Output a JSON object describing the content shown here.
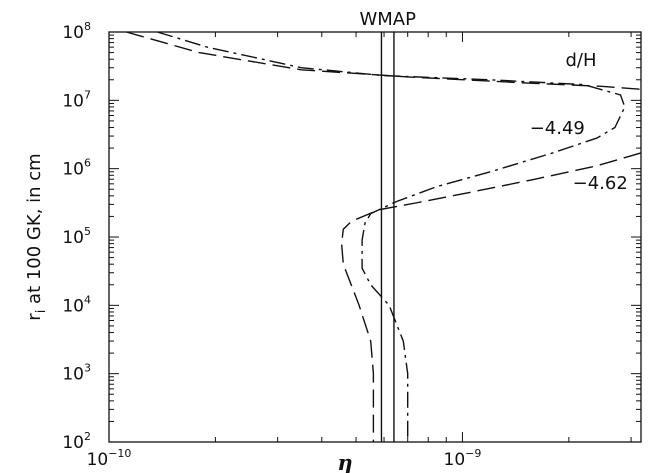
{
  "chart_data": {
    "type": "line",
    "title": "",
    "xlabel": "η",
    "ylabel": "r_i at 100 GK, in cm",
    "xscale": "log",
    "yscale": "log",
    "xlim": [
      1e-10,
      3.2e-09
    ],
    "ylim": [
      100,
      100000000
    ],
    "grid": false,
    "x_tick_labels": [
      {
        "value": 1e-10,
        "base": "10",
        "exp": "−10"
      },
      {
        "value": 1e-09,
        "base": "10",
        "exp": "−9"
      }
    ],
    "y_tick_labels": [
      {
        "value": 100,
        "base": "10",
        "exp": "2"
      },
      {
        "value": 1000,
        "base": "10",
        "exp": "3"
      },
      {
        "value": 10000,
        "base": "10",
        "exp": "4"
      },
      {
        "value": 100000,
        "base": "10",
        "exp": "5"
      },
      {
        "value": 1000000,
        "base": "10",
        "exp": "6"
      },
      {
        "value": 10000000,
        "base": "10",
        "exp": "7"
      },
      {
        "value": 100000000,
        "base": "10",
        "exp": "8"
      }
    ],
    "legend_title": "d/H",
    "wmap": {
      "label": "WMAP",
      "lines": [
        5.9e-10,
        6.4e-10
      ]
    },
    "series": [
      {
        "name": "−4.49",
        "dash": "dash-dot",
        "points": [
          {
            "x": 1.37e-10,
            "y": 100000000
          },
          {
            "x": 1.9e-10,
            "y": 60000000
          },
          {
            "x": 3.5e-10,
            "y": 30000000
          },
          {
            "x": 6e-10,
            "y": 23000000
          },
          {
            "x": 1.2e-09,
            "y": 20000000
          },
          {
            "x": 2.2e-09,
            "y": 17000000
          },
          {
            "x": 2.8e-09,
            "y": 12000000
          },
          {
            "x": 2.88e-09,
            "y": 8000000
          },
          {
            "x": 2.7e-09,
            "y": 4000000
          },
          {
            "x": 2.4e-09,
            "y": 2800000
          },
          {
            "x": 1.8e-09,
            "y": 1700000
          },
          {
            "x": 1.2e-09,
            "y": 900000
          },
          {
            "x": 8.5e-10,
            "y": 550000
          },
          {
            "x": 6.5e-10,
            "y": 330000
          },
          {
            "x": 5.5e-10,
            "y": 220000
          },
          {
            "x": 5.3e-10,
            "y": 160000
          },
          {
            "x": 5.2e-10,
            "y": 90000
          },
          {
            "x": 5.2e-10,
            "y": 35000
          },
          {
            "x": 5.5e-10,
            "y": 20000
          },
          {
            "x": 6.2e-10,
            "y": 10000
          },
          {
            "x": 6.8e-10,
            "y": 3000
          },
          {
            "x": 7e-10,
            "y": 1000
          },
          {
            "x": 7e-10,
            "y": 100
          }
        ]
      },
      {
        "name": "−4.62",
        "dash": "long-dash",
        "points": [
          {
            "x": 1.12e-10,
            "y": 100000000
          },
          {
            "x": 1.8e-10,
            "y": 50000000
          },
          {
            "x": 3.5e-10,
            "y": 28000000
          },
          {
            "x": 7e-10,
            "y": 22000000
          },
          {
            "x": 1.5e-09,
            "y": 18000000
          },
          {
            "x": 2.5e-09,
            "y": 16000000
          },
          {
            "x": 3.2e-09,
            "y": 14500000
          }
        ],
        "points_lower": [
          {
            "x": 3.2e-09,
            "y": 1700000
          },
          {
            "x": 2.4e-09,
            "y": 1100000
          },
          {
            "x": 1.6e-09,
            "y": 700000
          },
          {
            "x": 1.05e-09,
            "y": 450000
          },
          {
            "x": 7.5e-10,
            "y": 320000
          },
          {
            "x": 5.8e-10,
            "y": 250000
          },
          {
            "x": 4.85e-10,
            "y": 170000
          },
          {
            "x": 4.6e-10,
            "y": 130000
          },
          {
            "x": 4.55e-10,
            "y": 80000
          },
          {
            "x": 4.6e-10,
            "y": 40000
          },
          {
            "x": 5.1e-10,
            "y": 10000
          },
          {
            "x": 5.5e-10,
            "y": 3000
          },
          {
            "x": 5.6e-10,
            "y": 1000
          },
          {
            "x": 5.6e-10,
            "y": 100
          }
        ]
      }
    ],
    "annotations": [
      {
        "text": "−4.49",
        "x": 1.55e-09,
        "y": 3200000
      },
      {
        "text": "−4.62",
        "x": 2.05e-09,
        "y": 500000
      }
    ]
  }
}
